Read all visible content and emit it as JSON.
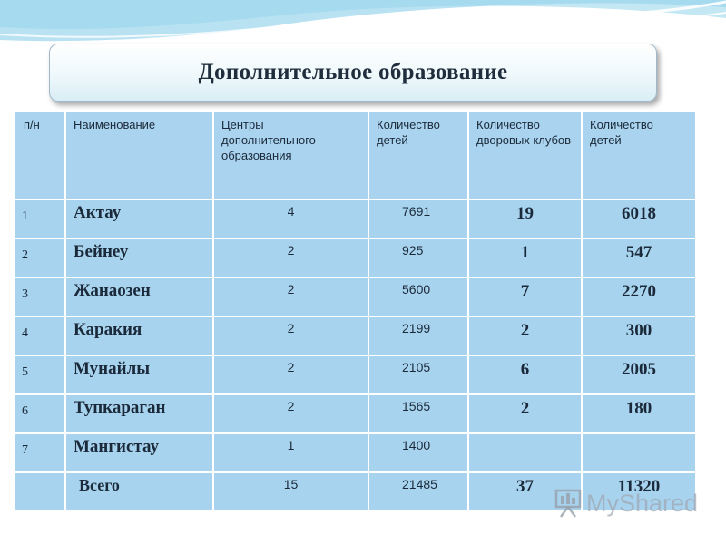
{
  "title": "Дополнительное образование",
  "headers": [
    "п/н",
    "Наименование",
    "Центры дополнительного образования",
    "Количество детей",
    "Количество дворовых клубов",
    "Количество детей"
  ],
  "rows": [
    {
      "num": "1",
      "name": "Актау",
      "centers": "4",
      "children": "7691",
      "clubs": "19",
      "club_children": "6018"
    },
    {
      "num": "2",
      "name": "Бейнеу",
      "centers": "2",
      "children": "925",
      "clubs": "1",
      "club_children": "547"
    },
    {
      "num": "3",
      "name": "Жанаозен",
      "centers": "2",
      "children": "5600",
      "clubs": "7",
      "club_children": "2270"
    },
    {
      "num": "4",
      "name": "Каракия",
      "centers": "2",
      "children": "2199",
      "clubs": "2",
      "club_children": "300"
    },
    {
      "num": "5",
      "name": "Мунайлы",
      "centers": "2",
      "children": "2105",
      "clubs": "6",
      "club_children": "2005"
    },
    {
      "num": "6",
      "name": "Тупкараган",
      "centers": "2",
      "children": "1565",
      "clubs": "2",
      "club_children": "180"
    },
    {
      "num": "7",
      "name": "Мангистау",
      "centers": "1",
      "children": "1400",
      "clubs": "",
      "club_children": ""
    }
  ],
  "total": {
    "num": "",
    "name": "Всего",
    "centers": "15",
    "children": "21485",
    "clubs": "37",
    "club_children": "11320"
  },
  "watermark": "MyShared",
  "colors": {
    "cell": "#a8d3ee",
    "text": "#1b2a3a",
    "wave": "#8fd0e8"
  }
}
